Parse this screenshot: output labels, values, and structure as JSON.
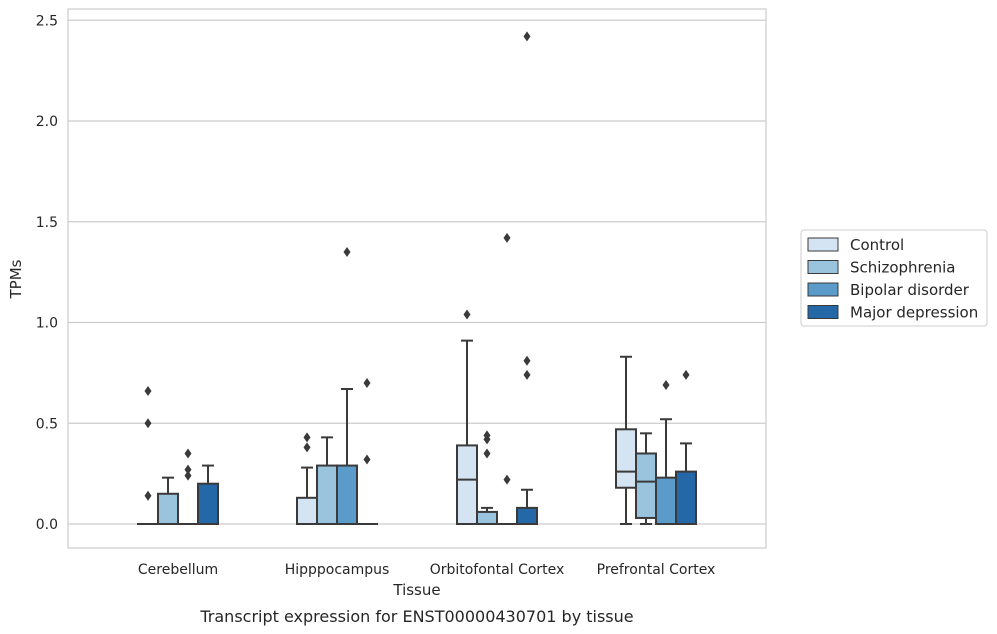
{
  "caption": "Transcript expression for ENST00000430701 by tissue",
  "chart_data": {
    "type": "boxplot",
    "title": "",
    "xlabel": "Tissue",
    "ylabel": "TPMs",
    "ylim": [
      -0.12,
      2.55
    ],
    "yticks": [
      "0.0",
      "0.5",
      "1.0",
      "1.5",
      "2.0",
      "2.5"
    ],
    "grid": true,
    "legend_position": "right",
    "categories": [
      "Cerebellum",
      "Hipppocampus",
      "Orbitofontal Cortex",
      "Prefrontal Cortex"
    ],
    "series": [
      {
        "name": "Control",
        "color": "#d4e4f3",
        "boxes": [
          {
            "min": 0,
            "q1": 0,
            "median": 0,
            "q3": 0,
            "max": 0,
            "outliers": [
              0.14,
              0.5,
              0.66
            ]
          },
          {
            "min": 0,
            "q1": 0,
            "median": 0,
            "q3": 0.13,
            "max": 0.28,
            "outliers": [
              0.38,
              0.43
            ]
          },
          {
            "min": 0,
            "q1": 0,
            "median": 0.22,
            "q3": 0.39,
            "max": 0.91,
            "outliers": [
              1.04
            ]
          },
          {
            "min": 0,
            "q1": 0.18,
            "median": 0.26,
            "q3": 0.47,
            "max": 0.83,
            "outliers": []
          }
        ]
      },
      {
        "name": "Schizophrenia",
        "color": "#9ac4de",
        "boxes": [
          {
            "min": 0,
            "q1": 0,
            "median": 0,
            "q3": 0.15,
            "max": 0.23,
            "outliers": []
          },
          {
            "min": 0,
            "q1": 0,
            "median": 0,
            "q3": 0.29,
            "max": 0.43,
            "outliers": []
          },
          {
            "min": 0,
            "q1": 0,
            "median": 0,
            "q3": 0.06,
            "max": 0.08,
            "outliers": [
              0.35,
              0.42,
              0.44
            ]
          },
          {
            "min": 0,
            "q1": 0.03,
            "median": 0.21,
            "q3": 0.35,
            "max": 0.45,
            "outliers": []
          }
        ]
      },
      {
        "name": "Bipolar disorder",
        "color": "#5a9bc9",
        "boxes": [
          {
            "min": 0,
            "q1": 0,
            "median": 0,
            "q3": 0,
            "max": 0,
            "outliers": [
              0.24,
              0.27,
              0.35
            ]
          },
          {
            "min": 0,
            "q1": 0,
            "median": 0,
            "q3": 0.29,
            "max": 0.67,
            "outliers": [
              1.35
            ]
          },
          {
            "min": 0,
            "q1": 0,
            "median": 0,
            "q3": 0,
            "max": 0,
            "outliers": [
              0.22,
              1.42
            ]
          },
          {
            "min": 0,
            "q1": 0,
            "median": 0,
            "q3": 0.23,
            "max": 0.52,
            "outliers": [
              0.69
            ]
          }
        ]
      },
      {
        "name": "Major depression",
        "color": "#2568a8",
        "boxes": [
          {
            "min": 0,
            "q1": 0,
            "median": 0,
            "q3": 0.2,
            "max": 0.29,
            "outliers": []
          },
          {
            "min": 0,
            "q1": 0,
            "median": 0,
            "q3": 0,
            "max": 0,
            "outliers": [
              0.32,
              0.7
            ]
          },
          {
            "min": 0,
            "q1": 0,
            "median": 0,
            "q3": 0.08,
            "max": 0.17,
            "outliers": [
              0.74,
              0.81,
              2.42
            ]
          },
          {
            "min": 0,
            "q1": 0,
            "median": 0,
            "q3": 0.26,
            "max": 0.4,
            "outliers": [
              0.74
            ]
          }
        ]
      }
    ]
  }
}
